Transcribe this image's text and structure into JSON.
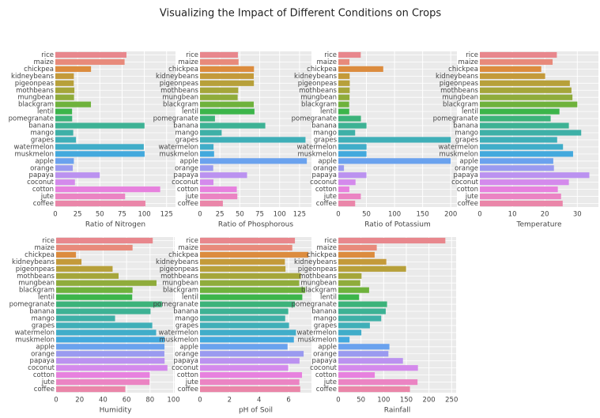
{
  "title": "Visualizing the Impact of Different Conditions on Crops",
  "chart_data": [
    {
      "type": "bar",
      "orientation": "horizontal",
      "xlabel": "Ratio of Nitrogen",
      "categories": [
        "rice",
        "maize",
        "chickpea",
        "kidneybeans",
        "pigeonpeas",
        "mothbeans",
        "mungbean",
        "blackgram",
        "lentil",
        "pomegranate",
        "banana",
        "mango",
        "grapes",
        "watermelon",
        "muskmelon",
        "apple",
        "orange",
        "papaya",
        "coconut",
        "cotton",
        "jute",
        "coffee"
      ],
      "values": [
        79.9,
        77.8,
        40.1,
        20.8,
        20.7,
        21.4,
        21.0,
        40.0,
        18.8,
        18.9,
        100.2,
        20.1,
        23.2,
        99.4,
        100.3,
        20.8,
        19.6,
        49.9,
        22.0,
        117.8,
        78.4,
        101.2
      ],
      "xlim": [
        0,
        135
      ],
      "xticks": [
        0,
        25,
        50,
        75,
        100,
        125
      ],
      "colors": [
        "#e8878d",
        "#e88a7b",
        "#dc8c3e",
        "#c49a3a",
        "#b7a03a",
        "#a5a63a",
        "#8fac3b",
        "#6fb23c",
        "#3cb54a",
        "#3cb37a",
        "#3db294",
        "#3eb0a7",
        "#3fafb8",
        "#40adc9",
        "#43a9dd",
        "#6aa2ee",
        "#9a9af0",
        "#bb92f0",
        "#d48aec",
        "#e781de",
        "#eb84c3",
        "#ea86a9"
      ]
    },
    {
      "type": "bar",
      "orientation": "horizontal",
      "xlabel": "Ratio of Phosphorous",
      "categories": [
        "rice",
        "maize",
        "chickpea",
        "kidneybeans",
        "pigeonpeas",
        "mothbeans",
        "mungbean",
        "blackgram",
        "lentil",
        "pomegranate",
        "banana",
        "mango",
        "grapes",
        "watermelon",
        "muskmelon",
        "apple",
        "orange",
        "papaya",
        "coconut",
        "cotton",
        "jute",
        "coffee"
      ],
      "values": [
        47.6,
        48.4,
        67.8,
        67.5,
        67.7,
        48.0,
        47.3,
        67.5,
        68.4,
        18.8,
        82.0,
        27.2,
        132.5,
        17.0,
        17.7,
        134.2,
        16.6,
        59.1,
        16.9,
        46.2,
        46.9,
        28.7
      ],
      "xlim": [
        0,
        140
      ],
      "xticks": [
        0,
        25,
        50,
        75,
        100,
        125
      ],
      "colors": [
        "#e8878d",
        "#e88a7b",
        "#dc8c3e",
        "#c49a3a",
        "#b7a03a",
        "#a5a63a",
        "#8fac3b",
        "#6fb23c",
        "#3cb54a",
        "#3cb37a",
        "#3db294",
        "#3eb0a7",
        "#3fafb8",
        "#40adc9",
        "#43a9dd",
        "#6aa2ee",
        "#9a9af0",
        "#bb92f0",
        "#d48aec",
        "#e781de",
        "#eb84c3",
        "#ea86a9"
      ]
    },
    {
      "type": "bar",
      "orientation": "horizontal",
      "xlabel": "Ratio of Potassium",
      "categories": [
        "rice",
        "maize",
        "chickpea",
        "kidneybeans",
        "pigeonpeas",
        "mothbeans",
        "mungbean",
        "blackgram",
        "lentil",
        "pomegranate",
        "banana",
        "mango",
        "grapes",
        "watermelon",
        "muskmelon",
        "apple",
        "orange",
        "papaya",
        "coconut",
        "cotton",
        "jute",
        "coffee"
      ],
      "values": [
        39.9,
        19.8,
        79.9,
        20.1,
        20.3,
        20.2,
        19.9,
        19.2,
        19.4,
        40.2,
        50.1,
        29.9,
        200.1,
        50.2,
        50.1,
        199.9,
        10.0,
        50.0,
        30.6,
        19.6,
        40.0,
        29.9
      ],
      "xlim": [
        0,
        211
      ],
      "xticks": [
        0,
        50,
        100,
        150,
        200
      ],
      "colors": [
        "#e8878d",
        "#e88a7b",
        "#dc8c3e",
        "#c49a3a",
        "#b7a03a",
        "#a5a63a",
        "#8fac3b",
        "#6fb23c",
        "#3cb54a",
        "#3cb37a",
        "#3db294",
        "#3eb0a7",
        "#3fafb8",
        "#40adc9",
        "#43a9dd",
        "#6aa2ee",
        "#9a9af0",
        "#bb92f0",
        "#d48aec",
        "#e781de",
        "#eb84c3",
        "#ea86a9"
      ]
    },
    {
      "type": "bar",
      "orientation": "horizontal",
      "xlabel": "Temperature",
      "categories": [
        "rice",
        "maize",
        "chickpea",
        "kidneybeans",
        "pigeonpeas",
        "mothbeans",
        "mungbean",
        "blackgram",
        "lentil",
        "pomegranate",
        "banana",
        "mango",
        "grapes",
        "watermelon",
        "muskmelon",
        "apple",
        "orange",
        "papaya",
        "coconut",
        "cotton",
        "jute",
        "coffee"
      ],
      "values": [
        23.7,
        22.4,
        18.9,
        20.1,
        27.7,
        28.2,
        28.5,
        30.0,
        24.5,
        21.8,
        27.4,
        31.2,
        23.8,
        25.6,
        28.7,
        22.6,
        22.8,
        33.7,
        27.4,
        24.0,
        25.0,
        25.5
      ],
      "xlim": [
        0,
        36.5
      ],
      "xticks": [
        0,
        10,
        20,
        30
      ],
      "colors": [
        "#e8878d",
        "#e88a7b",
        "#dc8c3e",
        "#c49a3a",
        "#b7a03a",
        "#a5a63a",
        "#8fac3b",
        "#6fb23c",
        "#3cb54a",
        "#3cb37a",
        "#3db294",
        "#3eb0a7",
        "#3fafb8",
        "#40adc9",
        "#43a9dd",
        "#6aa2ee",
        "#9a9af0",
        "#bb92f0",
        "#d48aec",
        "#e781de",
        "#eb84c3",
        "#ea86a9"
      ]
    },
    {
      "type": "bar",
      "orientation": "horizontal",
      "xlabel": "Humidity",
      "categories": [
        "rice",
        "maize",
        "chickpea",
        "kidneybeans",
        "pigeonpeas",
        "mothbeans",
        "mungbean",
        "blackgram",
        "lentil",
        "pomegranate",
        "banana",
        "mango",
        "grapes",
        "watermelon",
        "muskmelon",
        "apple",
        "orange",
        "papaya",
        "coconut",
        "cotton",
        "jute",
        "coffee"
      ],
      "values": [
        82.3,
        65.1,
        16.9,
        21.6,
        48.1,
        53.2,
        85.5,
        65.1,
        64.8,
        90.1,
        80.4,
        50.2,
        81.9,
        85.2,
        92.3,
        92.3,
        92.2,
        92.4,
        94.8,
        79.8,
        79.6,
        58.9
      ],
      "xlim": [
        0,
        101
      ],
      "xticks": [
        0,
        20,
        40,
        60,
        80,
        100
      ],
      "colors": [
        "#e8878d",
        "#e88a7b",
        "#dc8c3e",
        "#c49a3a",
        "#b7a03a",
        "#a5a63a",
        "#8fac3b",
        "#6fb23c",
        "#3cb54a",
        "#3cb37a",
        "#3db294",
        "#3eb0a7",
        "#3fafb8",
        "#40adc9",
        "#43a9dd",
        "#6aa2ee",
        "#9a9af0",
        "#bb92f0",
        "#d48aec",
        "#e781de",
        "#eb84c3",
        "#ea86a9"
      ]
    },
    {
      "type": "bar",
      "orientation": "horizontal",
      "xlabel": "pH of Soil",
      "categories": [
        "rice",
        "maize",
        "chickpea",
        "kidneybeans",
        "pigeonpeas",
        "mothbeans",
        "mungbean",
        "blackgram",
        "lentil",
        "pomegranate",
        "banana",
        "mango",
        "grapes",
        "watermelon",
        "muskmelon",
        "apple",
        "orange",
        "papaya",
        "coconut",
        "cotton",
        "jute",
        "coffee"
      ],
      "values": [
        6.43,
        6.25,
        7.34,
        5.75,
        5.79,
        6.83,
        6.72,
        7.13,
        6.93,
        6.43,
        5.98,
        5.77,
        6.03,
        6.5,
        6.36,
        5.93,
        7.02,
        6.74,
        5.98,
        6.91,
        6.73,
        6.79
      ],
      "xlim": [
        0,
        7.55
      ],
      "xticks": [
        0,
        2,
        4,
        6
      ],
      "colors": [
        "#e8878d",
        "#e88a7b",
        "#dc8c3e",
        "#c49a3a",
        "#b7a03a",
        "#a5a63a",
        "#8fac3b",
        "#6fb23c",
        "#3cb54a",
        "#3cb37a",
        "#3db294",
        "#3eb0a7",
        "#3fafb8",
        "#40adc9",
        "#43a9dd",
        "#6aa2ee",
        "#9a9af0",
        "#bb92f0",
        "#d48aec",
        "#e781de",
        "#eb84c3",
        "#ea86a9"
      ]
    },
    {
      "type": "bar",
      "orientation": "horizontal",
      "xlabel": "Rainfall",
      "categories": [
        "rice",
        "maize",
        "chickpea",
        "kidneybeans",
        "pigeonpeas",
        "mothbeans",
        "mungbean",
        "blackgram",
        "lentil",
        "pomegranate",
        "banana",
        "mango",
        "grapes",
        "watermelon",
        "muskmelon",
        "apple",
        "orange",
        "papaya",
        "coconut",
        "cotton",
        "jute",
        "coffee"
      ],
      "values": [
        236.2,
        84.8,
        80.1,
        105.9,
        149.5,
        51.2,
        48.4,
        67.9,
        45.7,
        107.5,
        104.6,
        94.7,
        69.6,
        50.8,
        24.7,
        112.7,
        110.5,
        142.6,
        175.7,
        80.4,
        174.8,
        158.1
      ],
      "xlim": [
        0,
        260
      ],
      "xticks": [
        0,
        50,
        100,
        150,
        200,
        250
      ],
      "colors": [
        "#e8878d",
        "#e88a7b",
        "#dc8c3e",
        "#c49a3a",
        "#b7a03a",
        "#a5a63a",
        "#8fac3b",
        "#6fb23c",
        "#3cb54a",
        "#3cb37a",
        "#3db294",
        "#3eb0a7",
        "#3fafb8",
        "#40adc9",
        "#43a9dd",
        "#6aa2ee",
        "#9a9af0",
        "#bb92f0",
        "#d48aec",
        "#e781de",
        "#eb84c3",
        "#ea86a9"
      ]
    }
  ]
}
